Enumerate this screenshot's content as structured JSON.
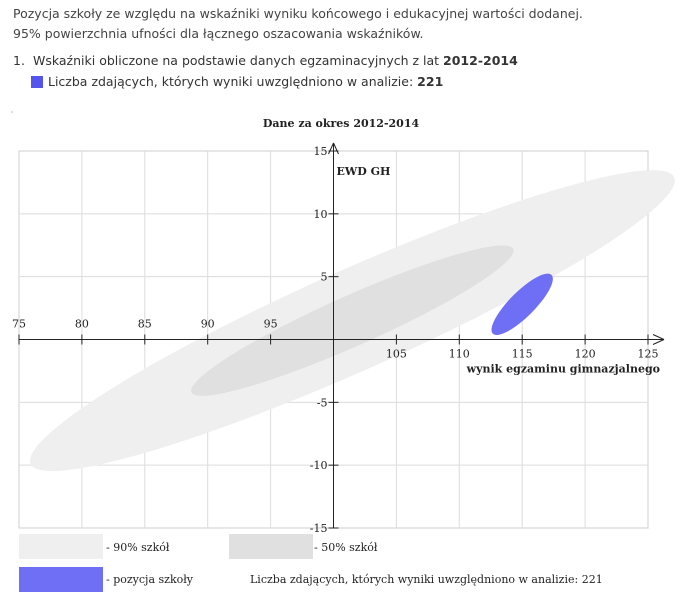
{
  "intro": {
    "line1": "Pozycja szkoły ze względu na wskaźniki wyniku końcowego i edukacyjnej wartości dodanej.",
    "line2": "95% powierzchnia ufności dla łącznego oszacowania wskaźników."
  },
  "list": {
    "number": "1.",
    "text": "Wskaźniki obliczone na podstawie danych egzaminacyjnych z lat ",
    "years": "2012-2014",
    "count_text": "Liczba zdających, których wyniki uwzględniono w analizie: ",
    "count": "221",
    "swatch_color": "#5555ee"
  },
  "chart_data": {
    "type": "scatter",
    "title": "Dane za okres 2012-2014",
    "xlabel": "wynik egzaminu gimnazjalnego",
    "ylabel": "EWD GH",
    "xlim": [
      75,
      125
    ],
    "ylim": [
      -15,
      15
    ],
    "x_ticks": [
      75,
      80,
      85,
      90,
      95,
      105,
      110,
      115,
      120,
      125
    ],
    "y_ticks": [
      15,
      10,
      5,
      -5,
      -10,
      -15
    ],
    "grid": true,
    "regions": [
      {
        "name": "90% szkół",
        "color": "#efefef",
        "cx": 101.5,
        "cy": 1.5,
        "rx": 28,
        "ry": 4,
        "angle_deg": 24
      },
      {
        "name": "50% szkół",
        "color": "#e0e0e0",
        "cx": 101.5,
        "cy": 1.5,
        "rx": 14,
        "ry": 2,
        "angle_deg": 24
      },
      {
        "name": "pozycja szkoły",
        "color": "#6f6ff5",
        "cx": 115,
        "cy": 2.8,
        "rx": 3.3,
        "ry": 1.0,
        "angle_deg": 45
      }
    ],
    "legend": [
      {
        "label": "- 90% szkół",
        "color": "#efefef"
      },
      {
        "label": "- 50% szkół",
        "color": "#e0e0e0"
      },
      {
        "label": "- pozycja szkoły",
        "color": "#6f6ff5"
      }
    ],
    "footer_note": "Liczba zdających, których wyniki uwzględniono w analizie: 221"
  }
}
